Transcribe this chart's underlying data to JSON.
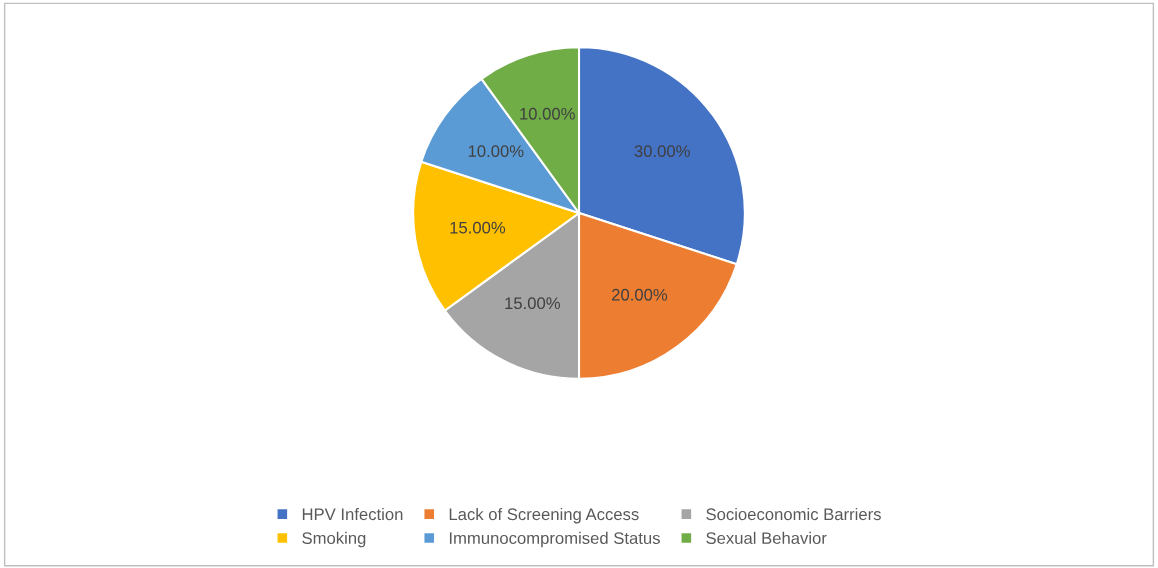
{
  "chart_data": {
    "type": "pie",
    "categories": [
      "HPV Infection",
      "Lack of Screening Access",
      "Socioeconomic Barriers",
      "Smoking",
      "Immunocompromised Status",
      "Sexual Behavior"
    ],
    "values": [
      30,
      20,
      15,
      15,
      10,
      10
    ],
    "colors": [
      "#4472c4",
      "#ed7d31",
      "#a5a5a5",
      "#ffc000",
      "#5b9bd5",
      "#70ad47"
    ],
    "value_labels": [
      "30.00%",
      "20.00%",
      "15.00%",
      "15.00%",
      "10.00%",
      "10.00%"
    ],
    "legend": "bottom"
  }
}
